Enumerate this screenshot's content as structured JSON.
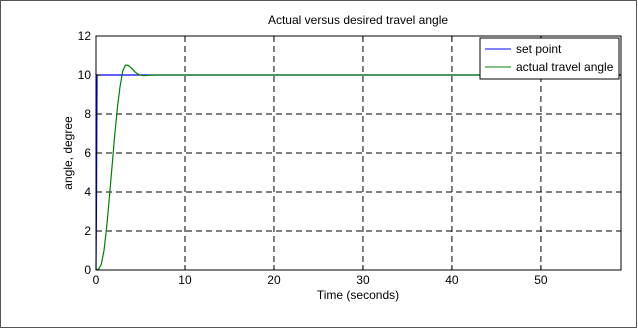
{
  "chart_data": {
    "type": "line",
    "title": "Actual versus desired travel angle",
    "xlabel": "Time (seconds)",
    "ylabel": "angle, degree",
    "xlim": [
      0,
      59
    ],
    "ylim": [
      0,
      12
    ],
    "xticks": [
      0,
      10,
      20,
      30,
      40,
      50
    ],
    "yticks": [
      0,
      2,
      4,
      6,
      8,
      10,
      12
    ],
    "grid": true,
    "legend_position": "top-right",
    "series": [
      {
        "name": "set point",
        "color": "#0000ff",
        "x": [
          0,
          0.05,
          0.12,
          0.2,
          0.4,
          1,
          5,
          10,
          20,
          30,
          40,
          50,
          59
        ],
        "y": [
          0,
          3,
          10,
          10,
          10,
          10,
          10,
          10,
          10,
          10,
          10,
          10,
          10
        ]
      },
      {
        "name": "actual travel angle",
        "color": "#008000",
        "x": [
          0,
          0.3,
          0.6,
          0.9,
          1.2,
          1.5,
          1.8,
          2.1,
          2.4,
          2.7,
          3.0,
          3.3,
          3.6,
          4.0,
          4.4,
          4.8,
          5.2,
          5.6,
          6.0,
          7,
          8,
          10,
          20,
          30,
          40,
          50,
          59
        ],
        "y": [
          0,
          0.05,
          0.3,
          1.0,
          2.2,
          3.7,
          5.3,
          6.9,
          8.3,
          9.4,
          10.2,
          10.5,
          10.5,
          10.35,
          10.15,
          10.02,
          9.97,
          9.97,
          9.99,
          10.0,
          10.0,
          10.0,
          10.0,
          10.0,
          10.0,
          10.0,
          10.0
        ]
      }
    ]
  }
}
